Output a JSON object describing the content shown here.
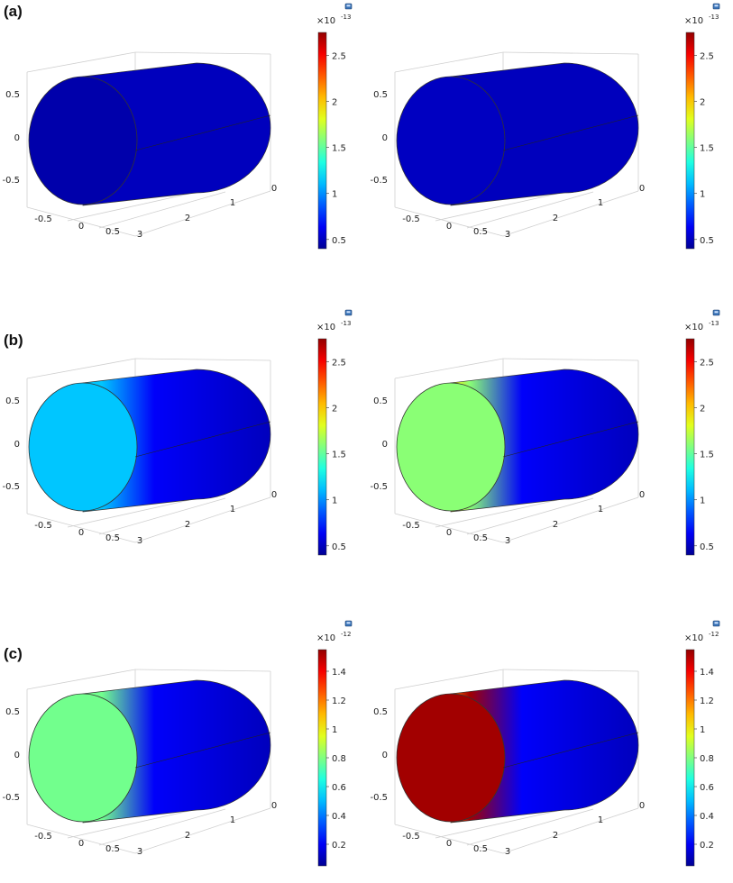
{
  "rows": [
    {
      "label": "(a)"
    },
    {
      "label": "(b)"
    },
    {
      "label": "(c)"
    }
  ],
  "axis_ticks": {
    "vertical": [
      "0.5",
      "0",
      "-0.5"
    ],
    "width": [
      "-0.5",
      "0",
      "0.5"
    ],
    "depth": [
      "0",
      "1",
      "2",
      "3"
    ]
  },
  "chart_data": [
    {
      "type": "heatmap",
      "row": "a",
      "side": "left",
      "multiplier": "×10",
      "exponent": "-13",
      "colorbar_ticks": [
        "2.5",
        "2",
        "1.5",
        "1",
        "0.5"
      ],
      "colorbar_range": [
        0.4,
        2.75
      ],
      "end_face_value": 0.5,
      "front_band_value": null
    },
    {
      "type": "heatmap",
      "row": "a",
      "side": "right",
      "multiplier": "×10",
      "exponent": "-13",
      "colorbar_ticks": [
        "2.5",
        "2",
        "1.5",
        "1",
        "0.5"
      ],
      "colorbar_range": [
        0.4,
        2.75
      ],
      "end_face_value": 0.55,
      "front_band_value": null
    },
    {
      "type": "heatmap",
      "row": "b",
      "side": "left",
      "multiplier": "×10",
      "exponent": "-13",
      "colorbar_ticks": [
        "2.5",
        "2",
        "1.5",
        "1",
        "0.5"
      ],
      "colorbar_range": [
        0.4,
        2.75
      ],
      "end_face_value": 1.15,
      "front_band_value": null
    },
    {
      "type": "heatmap",
      "row": "b",
      "side": "right",
      "multiplier": "×10",
      "exponent": "-13",
      "colorbar_ticks": [
        "2.5",
        "2",
        "1.5",
        "1",
        "0.5"
      ],
      "colorbar_range": [
        0.4,
        2.75
      ],
      "end_face_value": 1.6,
      "front_band_value": 1.9
    },
    {
      "type": "heatmap",
      "row": "c",
      "side": "left",
      "multiplier": "×10",
      "exponent": "-12",
      "colorbar_ticks": [
        "1.4",
        "1.2",
        "1",
        "0.8",
        "0.6",
        "0.4",
        "0.2"
      ],
      "colorbar_range": [
        0.05,
        1.55
      ],
      "end_face_value": 0.78,
      "front_band_value": null
    },
    {
      "type": "heatmap",
      "row": "c",
      "side": "right",
      "multiplier": "×10",
      "exponent": "-12",
      "colorbar_ticks": [
        "1.4",
        "1.2",
        "1",
        "0.8",
        "0.6",
        "0.4",
        "0.2"
      ],
      "colorbar_range": [
        0.05,
        1.55
      ],
      "end_face_value": 1.5,
      "front_band_value": 1.2
    }
  ]
}
